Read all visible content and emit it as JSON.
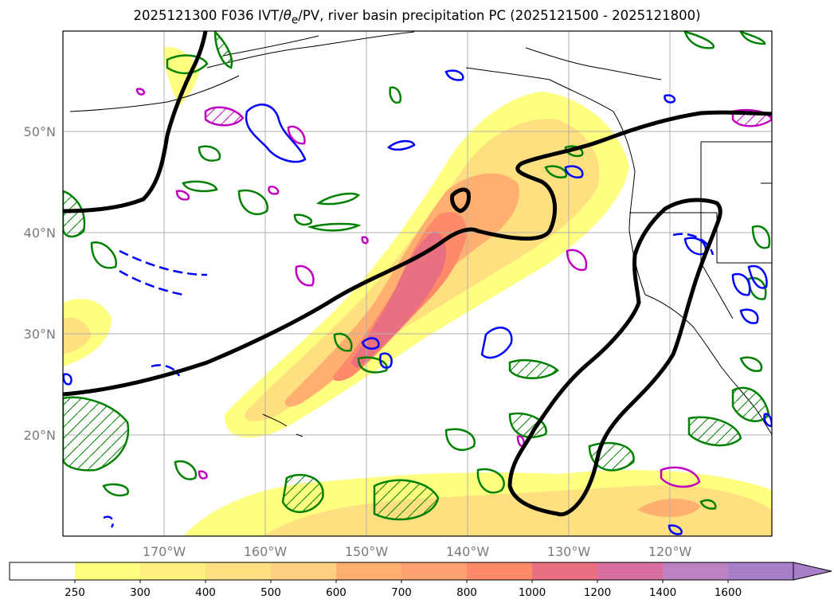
{
  "title": {
    "prefix": "2025121300 F036 IVT/",
    "theta": "θ",
    "theta_sub": "e",
    "suffix": "/PV, river basin precipitation PC (2025121500 - 2025121800)"
  },
  "map": {
    "lat_ticks": [
      "20°N",
      "30°N",
      "40°N",
      "50°N"
    ],
    "lon_ticks": [
      "170°W",
      "160°W",
      "150°W",
      "140°W",
      "130°W",
      "120°W"
    ],
    "grid": true
  },
  "colorbar": {
    "levels": [
      "250",
      "300",
      "400",
      "500",
      "600",
      "700",
      "800",
      "1000",
      "1200",
      "1400",
      "1600"
    ],
    "colors": [
      "#ffffff",
      "#ffff80",
      "#fff080",
      "#ffe080",
      "#ffd080",
      "#ffb070",
      "#ffa070",
      "#ff8a6a",
      "#e87080",
      "#d86fa0",
      "#bd82c2",
      "#a77fc8"
    ],
    "extend": "max"
  },
  "colors": {
    "theta_e_contour": "#000000",
    "pv_positive": "#008000",
    "pv_negative": "#0000ff",
    "magenta_contour": "#c000c0",
    "coastline": "#000000",
    "grid": "#b0b0b0"
  }
}
